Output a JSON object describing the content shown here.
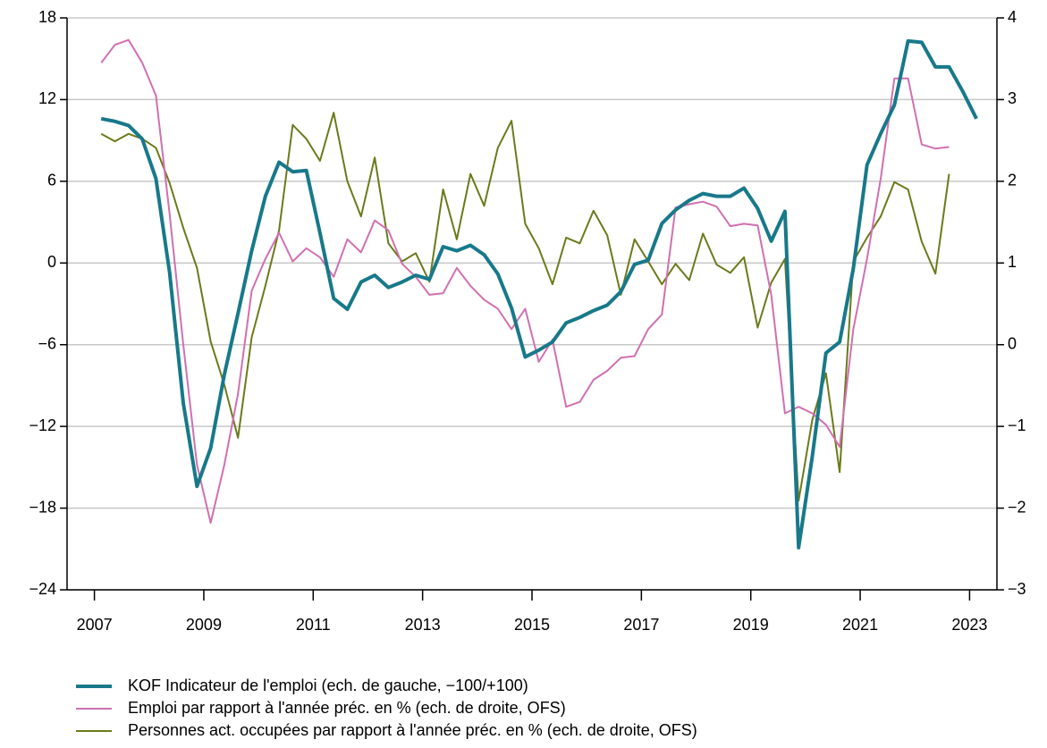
{
  "chart_data": {
    "type": "line",
    "x": [
      2007.625,
      2007.875,
      2008.125,
      2008.375,
      2008.625,
      2008.875,
      2009.125,
      2009.375,
      2009.625,
      2009.875,
      2010.125,
      2010.375,
      2010.625,
      2010.875,
      2011.125,
      2011.375,
      2011.625,
      2011.875,
      2012.125,
      2012.375,
      2012.625,
      2012.875,
      2013.125,
      2013.375,
      2013.625,
      2013.875,
      2014.125,
      2014.375,
      2014.625,
      2014.875,
      2015.125,
      2015.375,
      2015.625,
      2015.875,
      2016.125,
      2016.375,
      2016.625,
      2016.875,
      2017.125,
      2017.375,
      2017.625,
      2017.875,
      2018.125,
      2018.375,
      2018.625,
      2018.875,
      2019.125,
      2019.375,
      2019.625,
      2019.875,
      2020.125,
      2020.375,
      2020.625,
      2020.875,
      2021.125,
      2021.375,
      2021.625,
      2021.875,
      2022.125,
      2022.375,
      2022.625,
      2022.875,
      2023.125,
      2023.375,
      2023.625
    ],
    "xlim": [
      2007,
      2024
    ],
    "xticks": [
      {
        "value": 2007.5,
        "label": "2007"
      },
      {
        "value": 2009.5,
        "label": "2009"
      },
      {
        "value": 2011.5,
        "label": "2011"
      },
      {
        "value": 2013.5,
        "label": "2013"
      },
      {
        "value": 2015.5,
        "label": "2015"
      },
      {
        "value": 2017.5,
        "label": "2017"
      },
      {
        "value": 2019.5,
        "label": "2019"
      },
      {
        "value": 2021.5,
        "label": "2021"
      },
      {
        "value": 2023.5,
        "label": "2023"
      }
    ],
    "ylim": [
      -24,
      18
    ],
    "yticks": [
      {
        "value": -24,
        "label": "−24"
      },
      {
        "value": -18,
        "label": "−18"
      },
      {
        "value": -12,
        "label": "−12"
      },
      {
        "value": -6,
        "label": "−6"
      },
      0,
      6,
      12,
      18
    ],
    "y2lim": [
      -3,
      4
    ],
    "y2ticks": [
      {
        "value": -3,
        "label": "−3"
      },
      {
        "value": -2,
        "label": "−2"
      },
      {
        "value": -1,
        "label": "−1"
      },
      0,
      1,
      2,
      3,
      4
    ],
    "grid": true,
    "series": [
      {
        "name": "KOF Indicateur de l'emploi (ech. de gauche, −100/+100)",
        "color": "#17798a",
        "width": 4,
        "values": [
          10.6,
          10.4,
          10.1,
          9.1,
          6.2,
          -0.7,
          -10.3,
          -16.4,
          -13.6,
          -8.2,
          -3.7,
          0.9,
          4.9,
          7.4,
          6.7,
          6.8,
          2.2,
          -2.6,
          -3.4,
          -1.4,
          -0.9,
          -1.8,
          -1.4,
          -0.9,
          -1.2,
          1.2,
          0.9,
          1.3,
          0.6,
          -0.8,
          -3.3,
          -6.9,
          -6.4,
          -5.8,
          -4.4,
          -4.0,
          -3.5,
          -3.1,
          -2.1,
          -0.1,
          0.2,
          2.9,
          3.9,
          4.6,
          5.1,
          4.9,
          4.9,
          5.5,
          4.0,
          1.6,
          3.8,
          -20.9,
          -14.2,
          -6.6,
          -5.8,
          -0.4,
          7.2,
          9.5,
          11.6,
          16.3,
          16.2,
          14.4,
          14.4,
          12.6,
          10.6
        ]
      },
      {
        "name": "Emploi par rapport à l'année préc. en % (ech. de droite, OFS)",
        "color": "#d070b0",
        "width": 2,
        "axis": "y2",
        "values": [
          3.45,
          3.67,
          3.73,
          3.45,
          3.05,
          1.6,
          0.0,
          -1.47,
          -2.18,
          -1.47,
          -0.6,
          0.66,
          1.05,
          1.37,
          1.02,
          1.18,
          1.07,
          0.83,
          1.29,
          1.13,
          1.52,
          1.4,
          0.99,
          0.83,
          0.61,
          0.63,
          0.94,
          0.72,
          0.55,
          0.44,
          0.19,
          0.44,
          -0.21,
          0.06,
          -0.76,
          -0.7,
          -0.43,
          -0.32,
          -0.16,
          -0.14,
          0.19,
          0.37,
          1.68,
          1.72,
          1.75,
          1.69,
          1.45,
          1.48,
          1.46,
          0.61,
          -0.84,
          -0.76,
          -0.84,
          -0.98,
          -1.25,
          0.19,
          1.05,
          2.03,
          3.26,
          3.26,
          2.45,
          2.4,
          2.42,
          null,
          null
        ]
      },
      {
        "name": "Personnes act. occupées par rapport à l'année préc. en % (ech. de droite, OFS)",
        "color": "#6b7a1a",
        "width": 2,
        "axis": "y2",
        "values": [
          2.58,
          2.49,
          2.58,
          2.52,
          2.41,
          1.98,
          1.43,
          0.94,
          0.04,
          -0.49,
          -1.14,
          0.09,
          0.72,
          1.4,
          2.69,
          2.52,
          2.25,
          2.84,
          2.0,
          1.57,
          2.29,
          1.24,
          1.02,
          1.12,
          0.77,
          1.9,
          1.29,
          2.09,
          1.7,
          2.41,
          2.74,
          1.48,
          1.18,
          0.74,
          1.31,
          1.24,
          1.64,
          1.34,
          0.61,
          1.29,
          1.02,
          0.74,
          0.99,
          0.79,
          1.36,
          0.98,
          0.88,
          1.07,
          0.21,
          0.76,
          1.05,
          -1.91,
          -0.92,
          -0.35,
          -1.56,
          1.02,
          1.31,
          1.57,
          1.99,
          1.9,
          1.26,
          0.87,
          2.09,
          null,
          null
        ]
      }
    ]
  }
}
